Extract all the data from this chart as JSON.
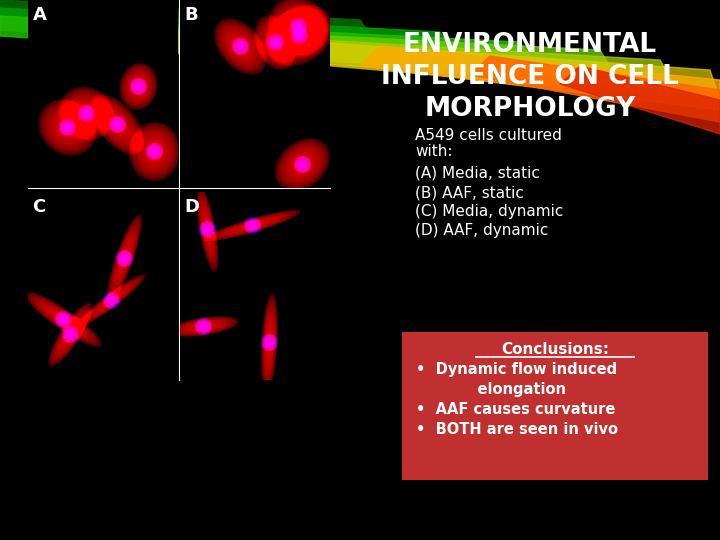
{
  "title_line1": "ENVIRONMENTAL",
  "title_line2": "INFLUENCE ON CELL",
  "title_line3": "MORPHOLOGY",
  "subtitle1": "A549 cells cultured",
  "subtitle2": "with:",
  "bullets": [
    "(A) Media, static",
    "(B) AAF, static",
    "(C) Media, dynamic",
    "(D) AAF, dynamic"
  ],
  "conclusion_title": "Conclusions:",
  "conclusion_bullets": [
    "Dynamic flow induced",
    "      elongation",
    "AAF causes curvature",
    "BOTH are seen in vivo"
  ],
  "conclusion_has_bullet": [
    true,
    false,
    true,
    true
  ],
  "bg_color": "#000000",
  "text_color": "#ffffff",
  "title_color": "#ffffff",
  "box_color": "#cc3333",
  "panel_labels": [
    "A",
    "B",
    "C",
    "D"
  ]
}
